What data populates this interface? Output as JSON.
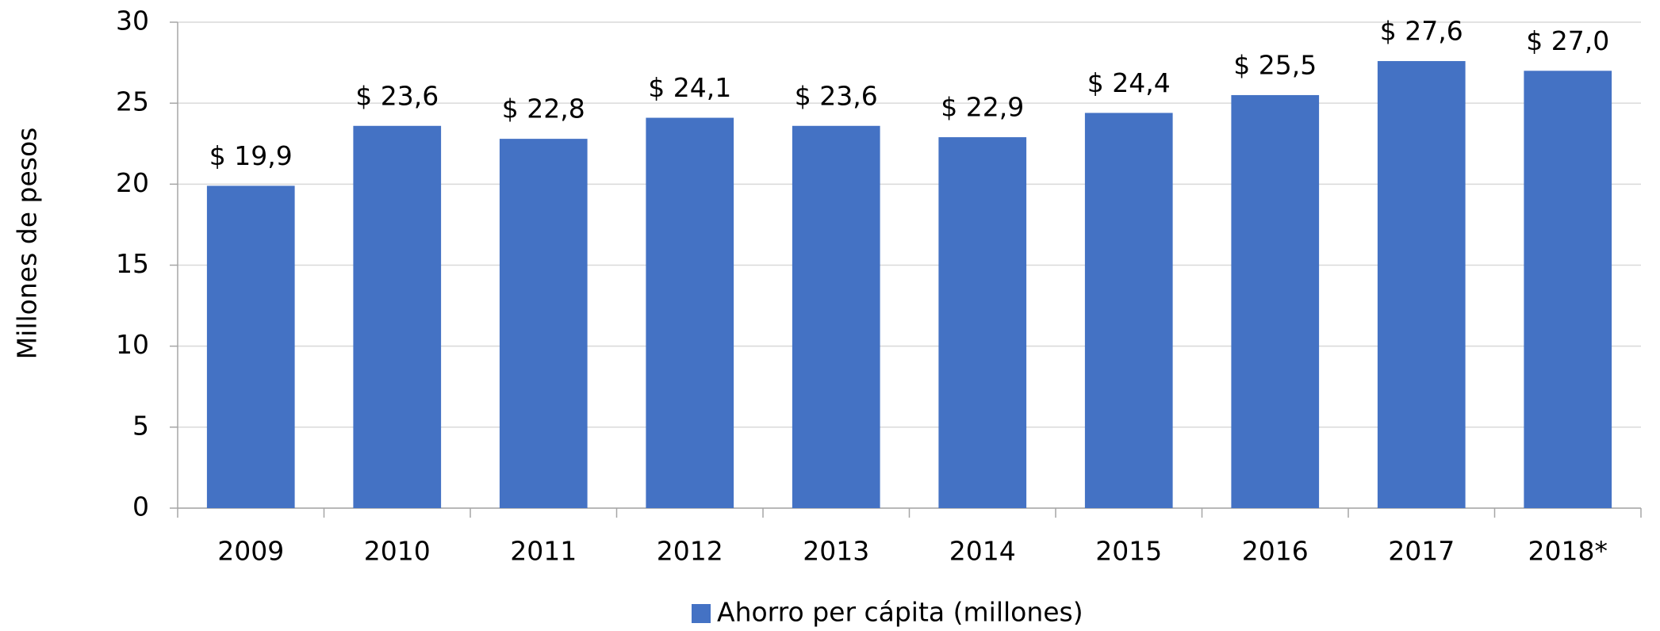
{
  "chart_data": {
    "type": "bar",
    "y_label": "Millones de pesos",
    "categories": [
      "2009",
      "2010",
      "2011",
      "2012",
      "2013",
      "2014",
      "2015",
      "2016",
      "2017",
      "2018*"
    ],
    "series": [
      {
        "name": "Ahorro per cápita (millones)",
        "color": "#4472c4",
        "values": [
          19.9,
          23.6,
          22.8,
          24.1,
          23.6,
          22.9,
          24.4,
          25.5,
          27.6,
          27.0
        ],
        "value_labels": [
          "$ 19,9",
          "$ 23,6",
          "$ 22,8",
          "$ 24,1",
          "$ 23,6",
          "$ 22,9",
          "$ 24,4",
          "$ 25,5",
          "$ 27,6",
          "$ 27,0"
        ]
      }
    ],
    "ylim": [
      0,
      30
    ],
    "yticks": [
      0,
      5,
      10,
      15,
      20,
      25,
      30
    ],
    "grid": true,
    "legend": "bottom"
  }
}
